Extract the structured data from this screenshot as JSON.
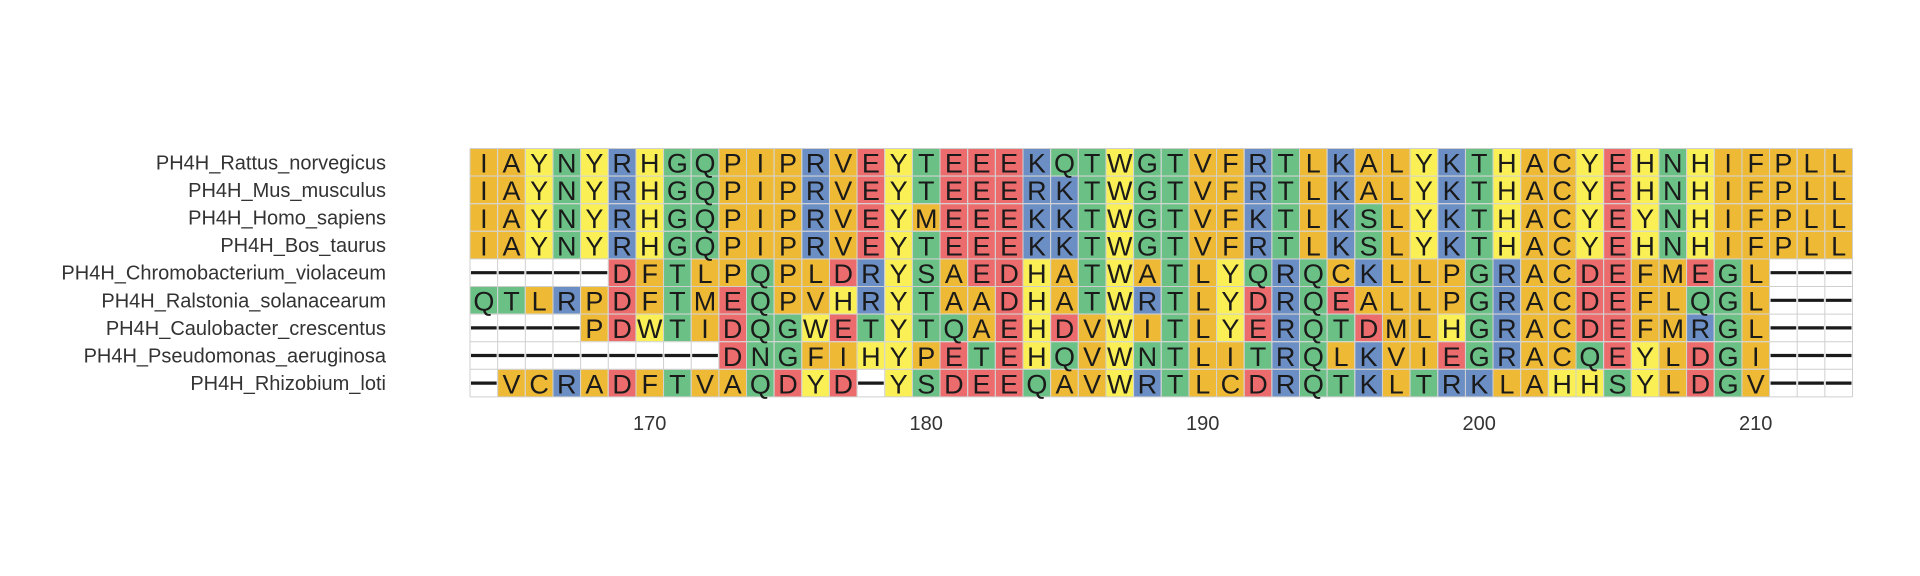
{
  "chart_data": {
    "type": "sequence_alignment",
    "start_position": 164,
    "end_position": 213,
    "sequences": [
      {
        "name": "PH4H_Rattus_norvegicus",
        "residues": "IAYNYRHGQPIPRVEYTEEEKQTWGTVFRTLKALYKTHACYEHNHIFPLL"
      },
      {
        "name": "PH4H_Mus_musculus",
        "residues": "IAYNYRHGQPIPRVEYTEEERKTWGTVFRTLKALYKTHACYEHNHIFPLL"
      },
      {
        "name": "PH4H_Homo_sapiens",
        "residues": "IAYNYRHGQPIPRVEYMEEEKKTWGTVFKTLKSLYKTHACYEYNHIFPLL"
      },
      {
        "name": "PH4H_Bos_taurus",
        "residues": "IAYNYRHGQPIPRVEYTEEEKKTWGTVFRTLKSLYKTHACYEHNHIFPLL"
      },
      {
        "name": "PH4H_Chromobacterium_violaceum",
        "residues": "-----DFTLPQPLDRYSAEDHATWATLYQRQCKLLPGRACDEFMEGL---"
      },
      {
        "name": "PH4H_Ralstonia_solanacearum",
        "residues": "QTLRPDFTMEQPVHRYTAADHATWRTLYDRQEALLPGRACDEFLQGL---"
      },
      {
        "name": "PH4H_Caulobacter_crescentus",
        "residues": "----PDWTIDQGWETYTQAEHDVWITLYERQTDMLHGRACDEFMRGL---"
      },
      {
        "name": "PH4H_Pseudomonas_aeruginosa",
        "residues": "---------DNGFIHYPETEHQVWNTLITRQLKVIEGRACQEYLDGI---"
      },
      {
        "name": "PH4H_Rhizobium_loti",
        "residues": "-VCRADFTVAQDYD-YSDEEQAVWRTLCDRQTKLTRKLAHHSYLDGV---"
      }
    ],
    "x_ticks": [
      170,
      180,
      190,
      200,
      210
    ],
    "color_scheme": {
      "hydrophobic": "#EEB935",
      "aromatic": "#FAF056",
      "basic": "#6B8FC5",
      "acidic": "#EC6B6C",
      "polar": "#6BC185",
      "gap": "#FFFFFF"
    },
    "residue_classes": {
      "A": "hydrophobic",
      "V": "hydrophobic",
      "L": "hydrophobic",
      "I": "hydrophobic",
      "M": "hydrophobic",
      "P": "hydrophobic",
      "C": "hydrophobic",
      "F": "hydrophobic",
      "W": "aromatic",
      "Y": "aromatic",
      "H": "aromatic",
      "K": "basic",
      "R": "basic",
      "D": "acidic",
      "E": "acidic",
      "G": "polar",
      "S": "polar",
      "T": "polar",
      "N": "polar",
      "Q": "polar"
    }
  }
}
